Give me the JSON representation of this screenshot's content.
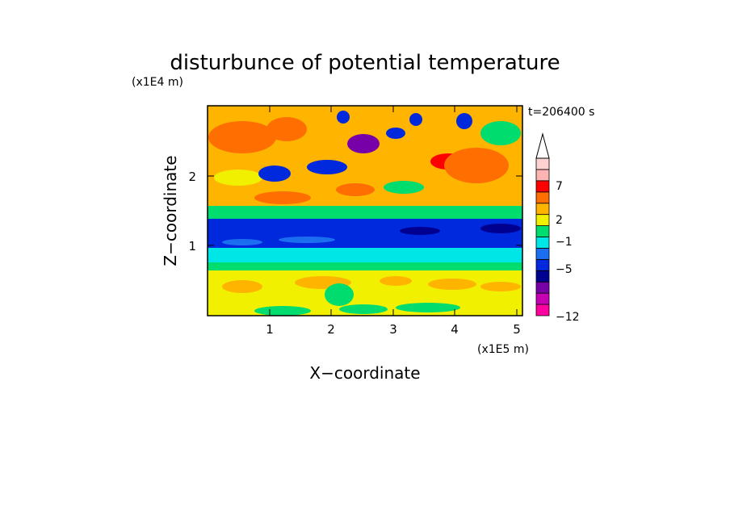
{
  "chart_data": {
    "type": "heatmap",
    "title": "disturbunce of potential temperature",
    "time_label": "t=206400 s",
    "xlabel": "X−coordinate",
    "ylabel": "Z−coordinate",
    "x_unit": "(x1E5 m)",
    "y_unit": "(x1E4 m)",
    "x_ticks": [
      "1",
      "2",
      "3",
      "4",
      "5"
    ],
    "y_ticks": [
      "1",
      "2"
    ],
    "xlim": [
      0,
      5.1
    ],
    "ylim": [
      0,
      3.0
    ],
    "colorbar": {
      "labels": [
        "7",
        "2",
        "−1",
        "−5",
        "−12"
      ],
      "colors": [
        "#ff00a0",
        "#c800b4",
        "#7800a8",
        "#000090",
        "#0028dc",
        "#1c6ef0",
        "#00e6e6",
        "#00dc6e",
        "#f0f000",
        "#ffb400",
        "#ff6e00",
        "#ff0000",
        "#ffb4b4",
        "#ffd2d2"
      ]
    },
    "bands": [
      {
        "z_range": [
          0.0,
          0.35
        ],
        "description_level": 1.5
      },
      {
        "z_range": [
          0.35,
          0.9
        ],
        "description_level": 0.0
      },
      {
        "z_range": [
          0.9,
          1.4
        ],
        "description_level": -5.0
      },
      {
        "z_range": [
          1.4,
          3.0
        ],
        "description_level": 2.0
      }
    ]
  }
}
